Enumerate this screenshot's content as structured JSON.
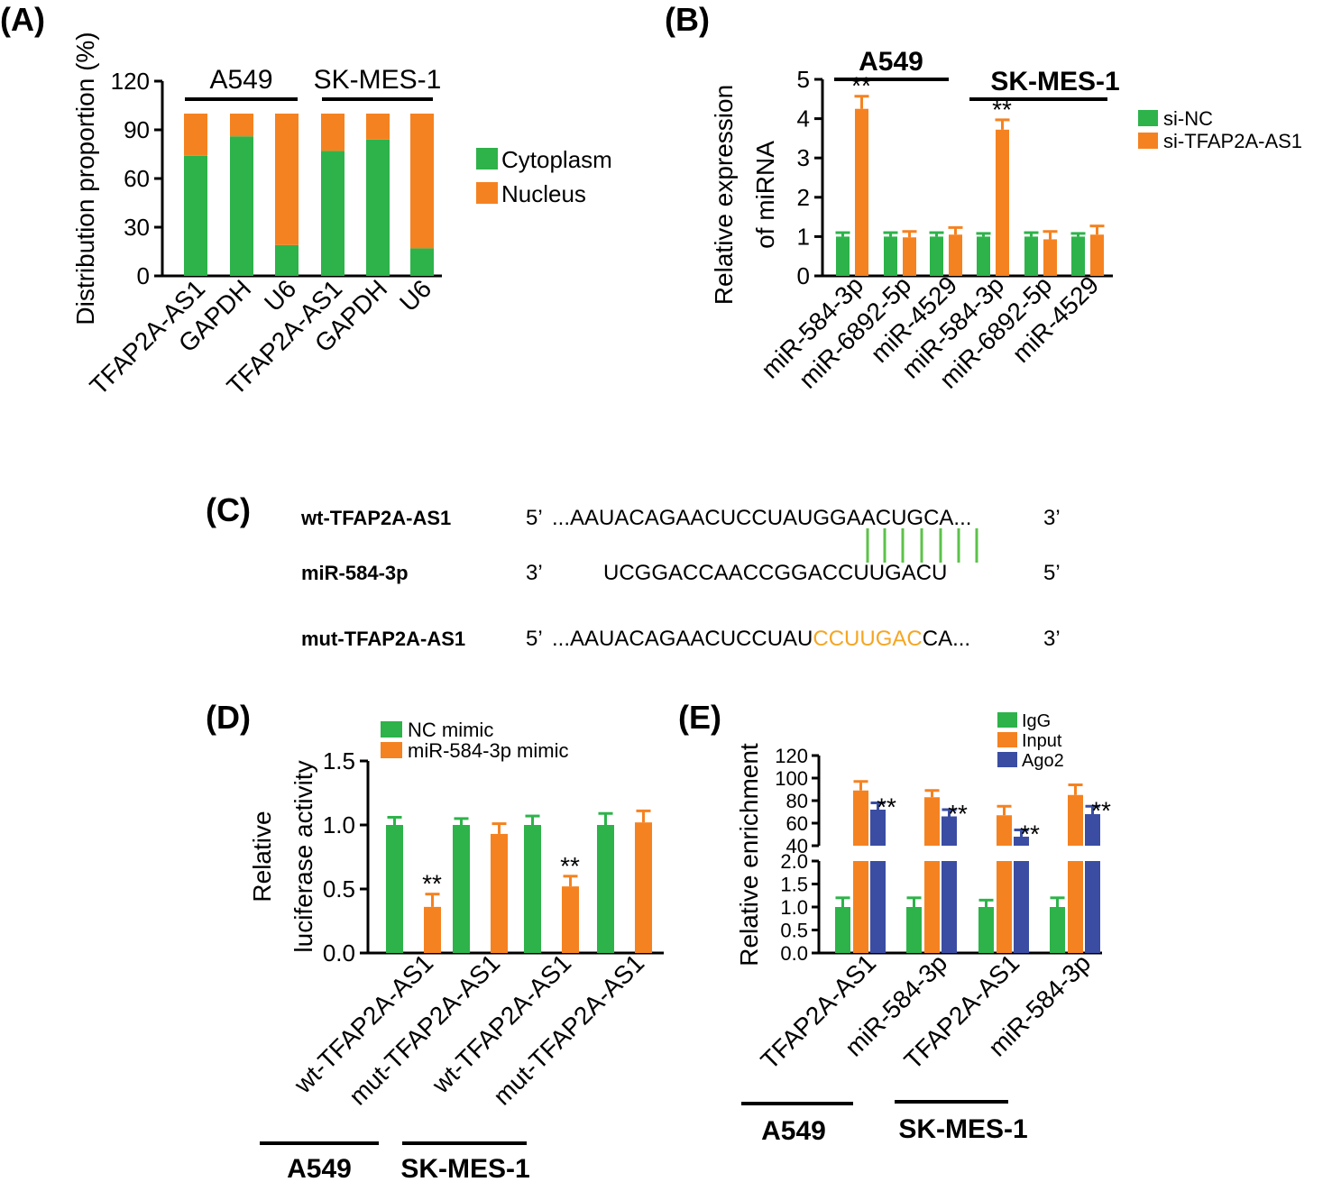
{
  "colors": {
    "green": "#2DB34A",
    "orange": "#F58220",
    "blue": "#3A4DA3",
    "mut": "#F5A623",
    "pair": "#5CC24A"
  },
  "chart_data": [
    {
      "panel": "(A)",
      "type": "bar",
      "stacked": true,
      "ylabel": "Distribution proportion (%)",
      "ylim": [
        0,
        120
      ],
      "yticks": [
        0,
        30,
        60,
        90,
        120
      ],
      "categories": [
        "TFAP2A-AS1",
        "GAPDH",
        "U6",
        "TFAP2A-AS1",
        "GAPDH",
        "U6"
      ],
      "groups": [
        {
          "label": "A549",
          "span": [
            0,
            2
          ]
        },
        {
          "label": "SK-MES-1",
          "span": [
            3,
            5
          ]
        }
      ],
      "series": [
        {
          "name": "Cytoplasm",
          "color": "#2DB34A",
          "values": [
            74,
            86,
            19,
            77,
            84,
            17
          ]
        },
        {
          "name": "Nucleus",
          "color": "#F58220",
          "values": [
            26,
            14,
            81,
            23,
            16,
            83
          ]
        }
      ],
      "legend_position": "right"
    },
    {
      "panel": "(B)",
      "type": "bar",
      "ylabel_line1": "Relative expression",
      "ylabel_line2": "of miRNA",
      "ylim": [
        0,
        5
      ],
      "yticks": [
        0,
        1,
        2,
        3,
        4,
        5
      ],
      "categories": [
        "miR-584-3p",
        "miR-6892-5p",
        "miR-4529",
        "miR-584-3p",
        "miR-6892-5p",
        "miR-4529"
      ],
      "groups": [
        {
          "label": "A549",
          "span": [
            0,
            2
          ]
        },
        {
          "label": "SK-MES-1",
          "span": [
            3,
            5
          ]
        }
      ],
      "series": [
        {
          "name": "si-NC",
          "color": "#2DB34A",
          "values": [
            1.0,
            1.0,
            1.0,
            1.0,
            1.0,
            1.0
          ],
          "errors": [
            0.1,
            0.1,
            0.1,
            0.08,
            0.1,
            0.08
          ]
        },
        {
          "name": "si-TFAP2A-AS1",
          "color": "#F58220",
          "values": [
            4.25,
            0.98,
            1.05,
            3.72,
            0.93,
            1.05
          ],
          "errors": [
            0.32,
            0.15,
            0.18,
            0.25,
            0.2,
            0.22
          ]
        }
      ],
      "significance": [
        {
          "category": 0,
          "label": "**"
        },
        {
          "category": 3,
          "label": "**"
        }
      ],
      "legend_position": "right"
    },
    {
      "panel": "(D)",
      "type": "bar",
      "ylabel_line1": "Relative",
      "ylabel_line2": "luciferase activity",
      "ylim": [
        0,
        1.5
      ],
      "yticks": [
        "0.0",
        "0.5",
        "1.0",
        "1.5"
      ],
      "categories": [
        "wt-TFAP2A-AS1",
        "mut-TFAP2A-AS1",
        "wt-TFAP2A-AS1",
        "mut-TFAP2A-AS1"
      ],
      "groups": [
        {
          "label": "A549",
          "span": [
            0,
            1
          ]
        },
        {
          "label": "SK-MES-1",
          "span": [
            2,
            3
          ]
        }
      ],
      "series": [
        {
          "name": "NC mimic",
          "color": "#2DB34A",
          "values": [
            1.0,
            1.0,
            1.0,
            1.0
          ],
          "errors": [
            0.06,
            0.05,
            0.07,
            0.09
          ]
        },
        {
          "name": "miR-584-3p mimic",
          "color": "#F58220",
          "values": [
            0.36,
            0.93,
            0.52,
            1.02
          ],
          "errors": [
            0.1,
            0.08,
            0.08,
            0.09
          ]
        }
      ],
      "significance": [
        {
          "category": 0,
          "label": "**"
        },
        {
          "category": 2,
          "label": "**"
        }
      ],
      "legend_position": "top"
    },
    {
      "panel": "(E)",
      "type": "bar",
      "ylabel": "Relative enrichment",
      "broken_axis": true,
      "lower_ylim": [
        0,
        2.0
      ],
      "lower_yticks": [
        "0.0",
        "0.5",
        "1.0",
        "1.5",
        "2.0"
      ],
      "upper_ylim": [
        40,
        120
      ],
      "upper_yticks": [
        "40",
        "60",
        "80",
        "100",
        "120"
      ],
      "categories": [
        "TFAP2A-AS1",
        "miR-584-3p",
        "TFAP2A-AS1",
        "miR-584-3p"
      ],
      "groups": [
        {
          "label": "A549",
          "span": [
            0,
            1
          ]
        },
        {
          "label": "SK-MES-1",
          "span": [
            2,
            3
          ]
        }
      ],
      "series": [
        {
          "name": "IgG",
          "color": "#2DB34A",
          "values": [
            1.0,
            1.0,
            1.0,
            1.0
          ],
          "errors": [
            0.2,
            0.2,
            0.15,
            0.2
          ]
        },
        {
          "name": "Input",
          "color": "#F58220",
          "values": [
            89,
            83,
            67,
            85
          ],
          "errors": [
            8,
            6,
            8,
            9
          ]
        },
        {
          "name": "Ago2",
          "color": "#3A4DA3",
          "values": [
            72,
            66,
            48,
            68
          ],
          "errors": [
            6,
            6,
            6,
            7
          ]
        }
      ],
      "significance": [
        {
          "category": 0,
          "label": "**"
        },
        {
          "category": 1,
          "label": "**"
        },
        {
          "category": 2,
          "label": "**"
        },
        {
          "category": 3,
          "label": "**"
        }
      ],
      "legend_position": "top"
    }
  ],
  "panel_c": {
    "label": "(C)",
    "rows": [
      {
        "name": "wt-TFAP2A-AS1",
        "end5": "5’",
        "prefix": "...AAUACAGAACUCCUAU",
        "highlight": "GGAACUG",
        "suffix": "CA...",
        "end3": "3’"
      },
      {
        "name": "miR-584-3p",
        "end5": "3’",
        "sequence": "UCGGACCAACCGGACCUUGACU",
        "end3": "5’"
      },
      {
        "name": "mut-TFAP2A-AS1",
        "end5": "5’",
        "prefix": "...AAUACAGAACUCCUAU",
        "highlight": "CCUUGAC",
        "suffix": "CA...",
        "end3": "3’"
      }
    ]
  }
}
